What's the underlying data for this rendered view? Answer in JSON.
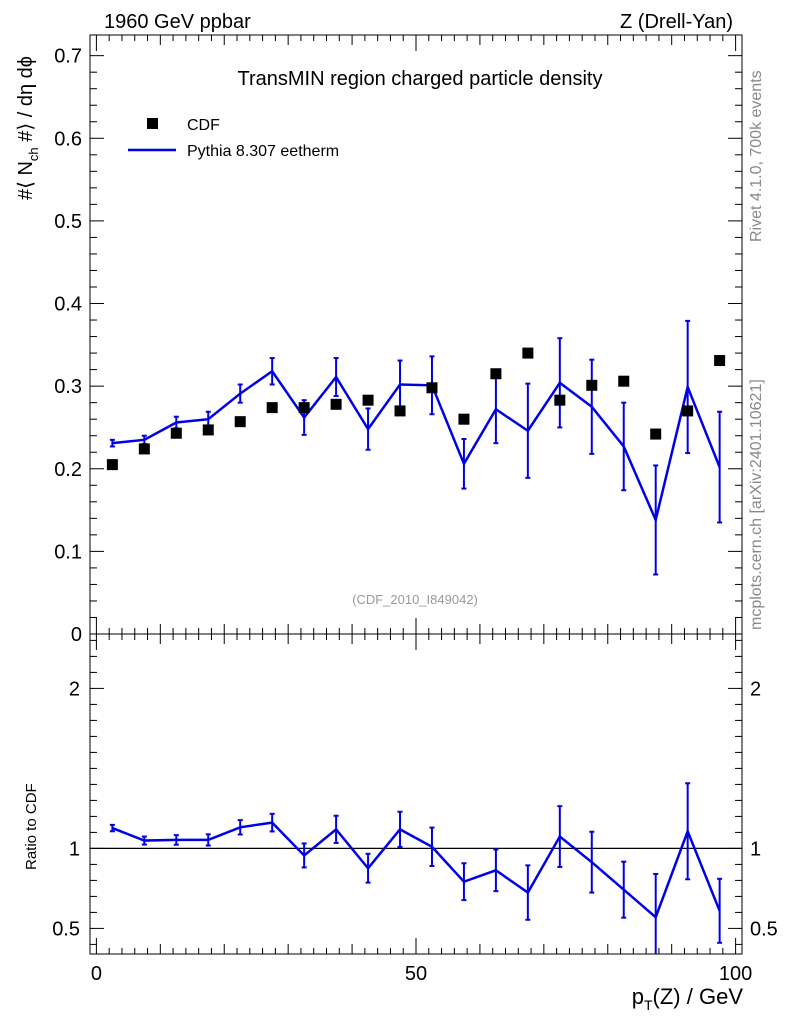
{
  "header": {
    "left": "1960 GeV ppbar",
    "right": "Z (Drell-Yan)"
  },
  "side_labels": {
    "top": "Rivet 4.1.0,  700k events",
    "bottom": "mcplots.cern.ch [arXiv:2401.10621]"
  },
  "colors": {
    "mc": "#0000e6",
    "data": "#000000",
    "watermark": "#999999"
  },
  "chart_data": [
    {
      "type": "scatter",
      "title": "TransMIN region charged particle density",
      "analysis_tag": "(CDF_2010_I849042)",
      "ylabel_parts": {
        "a": "#",
        "b": "⟨ N",
        "sub": "ch",
        "c": " #⟩ / dη dϕ"
      },
      "xlim": [
        -1,
        101
      ],
      "ylim": [
        0,
        0.725
      ],
      "yticks": [
        0,
        0.1,
        0.2,
        0.3,
        0.4,
        0.5,
        0.6,
        0.7
      ],
      "ytick_labels": [
        "0",
        "0.1",
        "0.2",
        "0.3",
        "0.4",
        "0.5",
        "0.6",
        "0.7"
      ],
      "legend": {
        "position": "top-left",
        "entries": [
          {
            "name": "CDF",
            "style": "marker"
          },
          {
            "name": "Pythia 8.307 eetherm",
            "style": "line"
          }
        ]
      },
      "series": [
        {
          "name": "CDF",
          "x": [
            2.5,
            7.5,
            12.5,
            17.5,
            22.5,
            27.5,
            32.5,
            37.5,
            42.5,
            47.5,
            52.5,
            57.5,
            62.5,
            67.5,
            72.5,
            77.5,
            82.5,
            87.5,
            92.5,
            97.5
          ],
          "y": [
            0.205,
            0.224,
            0.243,
            0.247,
            0.257,
            0.274,
            0.274,
            0.278,
            0.283,
            0.27,
            0.298,
            0.26,
            0.315,
            0.34,
            0.283,
            0.301,
            0.306,
            0.242,
            0.27,
            0.331
          ]
        },
        {
          "name": "Pythia 8.307 eetherm",
          "x": [
            2.5,
            7.5,
            12.5,
            17.5,
            22.5,
            27.5,
            32.5,
            37.5,
            42.5,
            47.5,
            52.5,
            57.5,
            62.5,
            67.5,
            72.5,
            77.5,
            82.5,
            87.5,
            92.5,
            97.5
          ],
          "y": [
            0.231,
            0.235,
            0.256,
            0.26,
            0.291,
            0.318,
            0.262,
            0.311,
            0.248,
            0.302,
            0.301,
            0.206,
            0.272,
            0.246,
            0.304,
            0.275,
            0.227,
            0.138,
            0.299,
            0.202
          ],
          "err": [
            0.004,
            0.005,
            0.007,
            0.009,
            0.011,
            0.016,
            0.021,
            0.023,
            0.025,
            0.029,
            0.035,
            0.03,
            0.041,
            0.057,
            0.054,
            0.057,
            0.053,
            0.066,
            0.08,
            0.067
          ]
        }
      ]
    },
    {
      "type": "scatter",
      "title": "Ratio to CDF",
      "ylabel": "Ratio to CDF",
      "xlabel": "p_T(Z) / GeV",
      "xlabel_parts": {
        "a": "p",
        "sub": "T",
        "c": "(Z) / GeV"
      },
      "xlim": [
        -1,
        101
      ],
      "ylim": [
        0.34,
        2.34
      ],
      "xticks": [
        0,
        50,
        100
      ],
      "xtick_labels": [
        "0",
        "50",
        "100"
      ],
      "ytick_labels": [
        "0.5",
        "1",
        "2"
      ],
      "ytick_values": [
        0.5,
        1,
        2
      ],
      "reference_line": 1,
      "series": [
        {
          "name": "Pythia 8.307 eetherm / CDF",
          "x": [
            2.5,
            7.5,
            12.5,
            17.5,
            22.5,
            27.5,
            32.5,
            37.5,
            42.5,
            47.5,
            52.5,
            57.5,
            62.5,
            67.5,
            72.5,
            77.5,
            82.5,
            87.5,
            92.5,
            97.5
          ],
          "y": [
            1.127,
            1.049,
            1.053,
            1.053,
            1.132,
            1.161,
            0.956,
            1.119,
            0.876,
            1.119,
            1.01,
            0.792,
            0.863,
            0.724,
            1.074,
            0.914,
            0.742,
            0.57,
            1.107,
            0.61
          ],
          "err": [
            0.02,
            0.025,
            0.03,
            0.035,
            0.045,
            0.055,
            0.075,
            0.085,
            0.09,
            0.11,
            0.12,
            0.115,
            0.13,
            0.17,
            0.19,
            0.19,
            0.175,
            0.27,
            0.3,
            0.2
          ]
        }
      ]
    }
  ]
}
